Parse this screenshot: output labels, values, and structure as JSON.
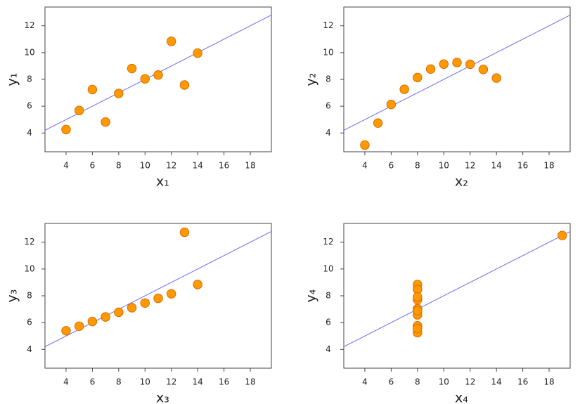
{
  "chart_data": [
    {
      "type": "scatter",
      "xlabel": "x₁",
      "ylabel": "y₁",
      "x": [
        10,
        8,
        13,
        9,
        11,
        14,
        6,
        4,
        12,
        7,
        5
      ],
      "values": [
        8.04,
        6.95,
        7.58,
        8.81,
        8.33,
        9.96,
        7.24,
        4.26,
        10.84,
        4.82,
        5.68
      ],
      "color": "#ff9900",
      "fit": {
        "intercept": 3,
        "slope": 0.5,
        "color": "#6a6aee"
      },
      "xlim": [
        2.4,
        19.6
      ],
      "ylim": [
        2.6,
        13.4
      ],
      "xticks": [
        4,
        6,
        8,
        10,
        12,
        14,
        16,
        18
      ],
      "yticks": [
        4,
        6,
        8,
        10,
        12
      ]
    },
    {
      "type": "scatter",
      "xlabel": "x₂",
      "ylabel": "y₂",
      "x": [
        10,
        8,
        13,
        9,
        11,
        14,
        6,
        4,
        12,
        7,
        5
      ],
      "values": [
        9.14,
        8.14,
        8.74,
        8.77,
        9.26,
        8.1,
        6.13,
        3.1,
        9.13,
        7.26,
        4.74
      ],
      "color": "#ff9900",
      "fit": {
        "intercept": 3,
        "slope": 0.5,
        "color": "#6a6aee"
      },
      "xlim": [
        2.4,
        19.6
      ],
      "ylim": [
        2.6,
        13.4
      ],
      "xticks": [
        4,
        6,
        8,
        10,
        12,
        14,
        16,
        18
      ],
      "yticks": [
        4,
        6,
        8,
        10,
        12
      ]
    },
    {
      "type": "scatter",
      "xlabel": "x₃",
      "ylabel": "y₃",
      "x": [
        10,
        8,
        13,
        9,
        11,
        14,
        6,
        4,
        12,
        7,
        5
      ],
      "values": [
        7.46,
        6.77,
        12.74,
        7.11,
        7.81,
        8.84,
        6.08,
        5.39,
        8.15,
        6.42,
        5.73
      ],
      "color": "#ff9900",
      "fit": {
        "intercept": 3,
        "slope": 0.5,
        "color": "#6a6aee"
      },
      "xlim": [
        2.4,
        19.6
      ],
      "ylim": [
        2.6,
        13.4
      ],
      "xticks": [
        4,
        6,
        8,
        10,
        12,
        14,
        16,
        18
      ],
      "yticks": [
        4,
        6,
        8,
        10,
        12
      ]
    },
    {
      "type": "scatter",
      "xlabel": "x₄",
      "ylabel": "y₄",
      "x": [
        8,
        8,
        8,
        8,
        8,
        8,
        8,
        19,
        8,
        8,
        8
      ],
      "values": [
        6.58,
        5.76,
        7.71,
        8.84,
        8.47,
        7.04,
        5.25,
        12.5,
        5.56,
        7.91,
        6.89
      ],
      "color": "#ff9900",
      "fit": {
        "intercept": 3,
        "slope": 0.5,
        "color": "#6a6aee"
      },
      "xlim": [
        2.4,
        19.6
      ],
      "ylim": [
        2.6,
        13.4
      ],
      "xticks": [
        4,
        6,
        8,
        10,
        12,
        14,
        16,
        18
      ],
      "yticks": [
        4,
        6,
        8,
        10,
        12
      ]
    }
  ]
}
